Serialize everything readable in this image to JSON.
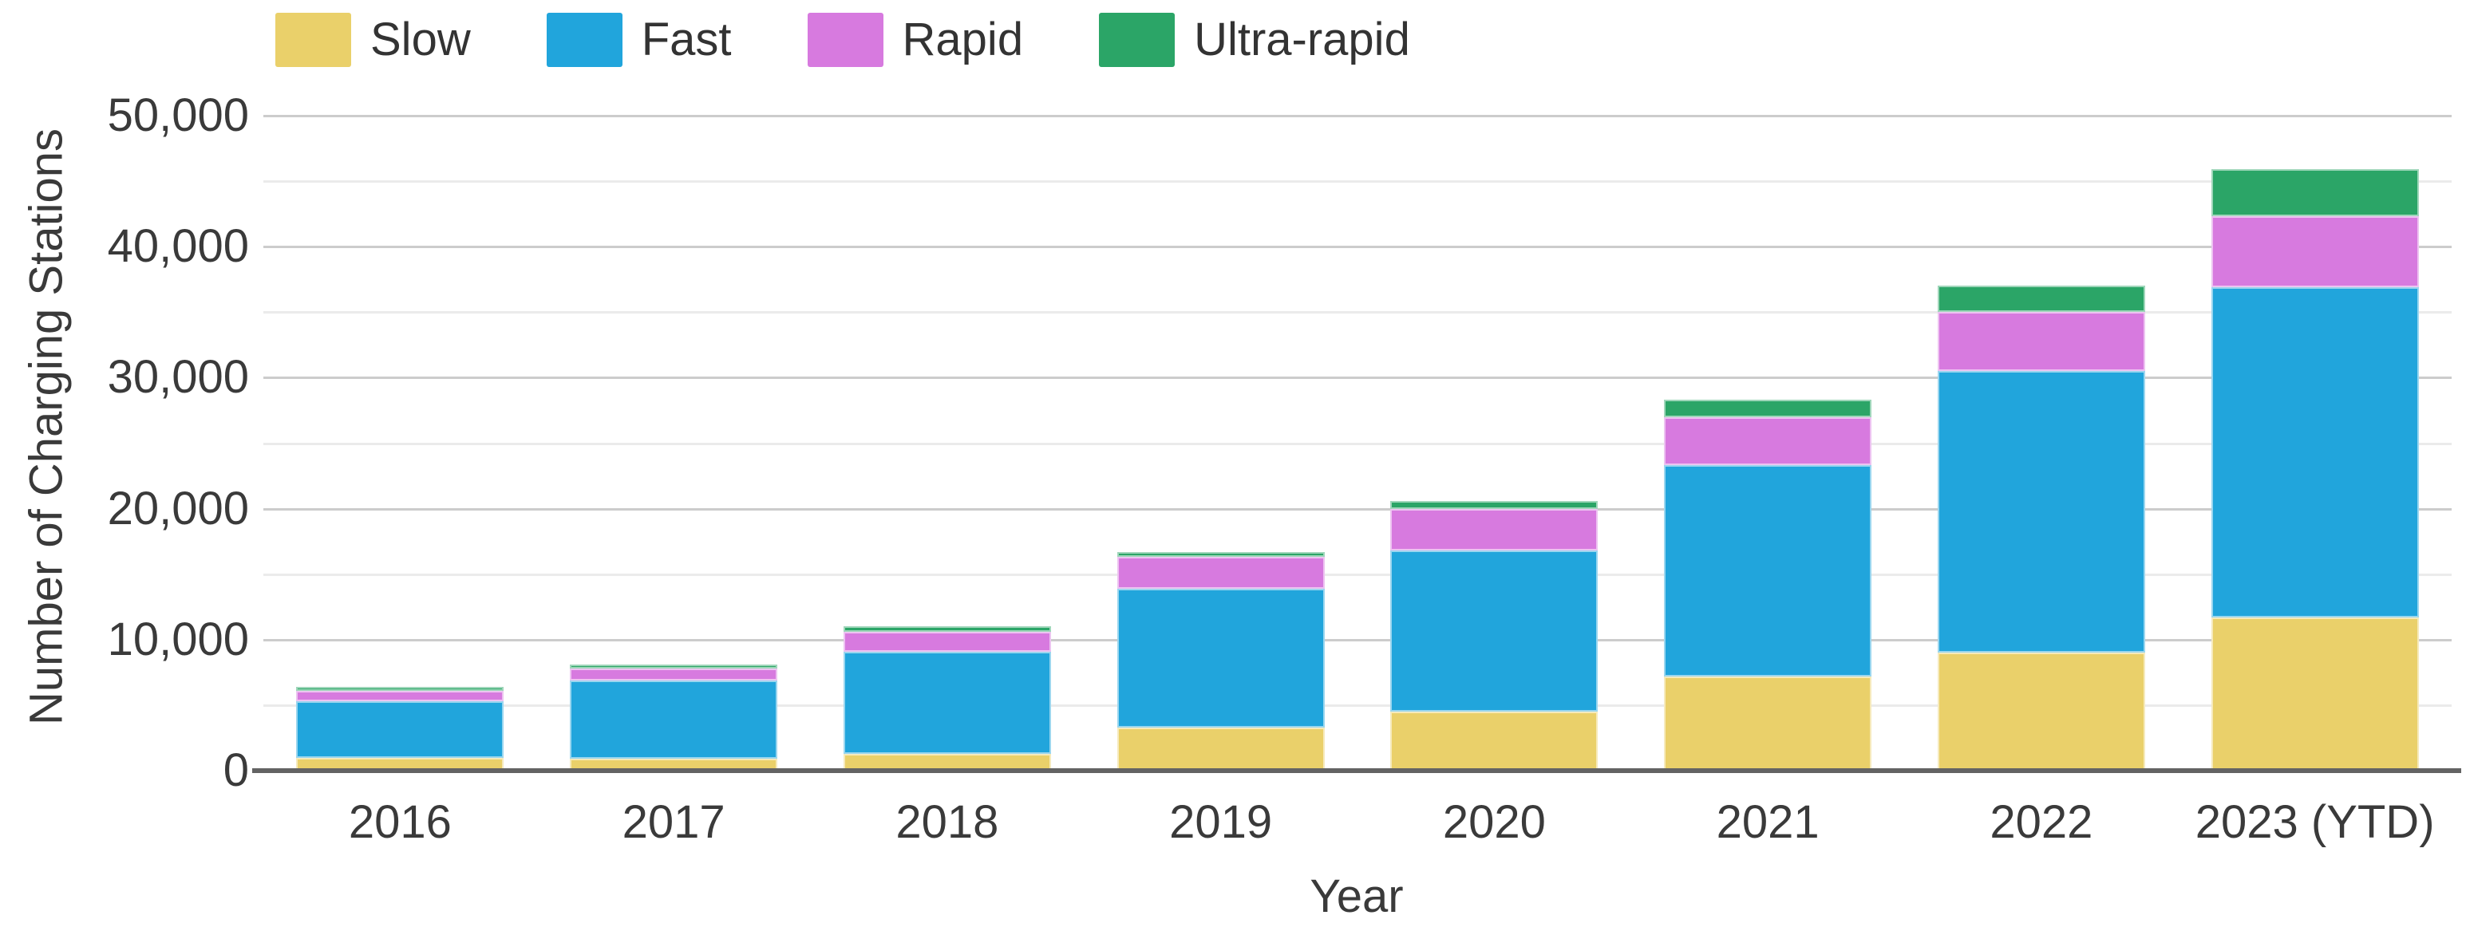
{
  "chart_data": {
    "type": "bar",
    "stacked": true,
    "categories": [
      "2016",
      "2017",
      "2018",
      "2019",
      "2020",
      "2021",
      "2022",
      "2023 (YTD)"
    ],
    "series": [
      {
        "name": "Slow",
        "color": "#EAD06A",
        "values": [
          1000,
          900,
          1300,
          3300,
          4500,
          7200,
          9000,
          11700
        ]
      },
      {
        "name": "Fast",
        "color": "#21A5DC",
        "values": [
          4300,
          6000,
          7800,
          10600,
          12300,
          16100,
          21500,
          25200
        ]
      },
      {
        "name": "Rapid",
        "color": "#D77ADF",
        "values": [
          800,
          900,
          1500,
          2400,
          3200,
          3700,
          4500,
          5400
        ]
      },
      {
        "name": "Ultra-rapid",
        "color": "#2BA567",
        "values": [
          300,
          300,
          400,
          400,
          600,
          1300,
          2000,
          3600
        ]
      }
    ],
    "totals": [
      6400,
      8100,
      11000,
      16700,
      20600,
      28300,
      37000,
      45900
    ],
    "xlabel": "Year",
    "ylabel": "Number of Charging Stations",
    "ylim": [
      0,
      50000
    ],
    "ytick_step": 10000,
    "ytick_minor_step": 5000,
    "ytick_labels": [
      "0",
      "10,000",
      "20,000",
      "30,000",
      "40,000",
      "50,000"
    ],
    "grid": true,
    "legend_position": "top-left",
    "colors": {
      "grid_minor": "#ebebeb",
      "grid_major": "#cccccc",
      "axis_line": "#636363",
      "text": "#3a3a3a"
    }
  }
}
